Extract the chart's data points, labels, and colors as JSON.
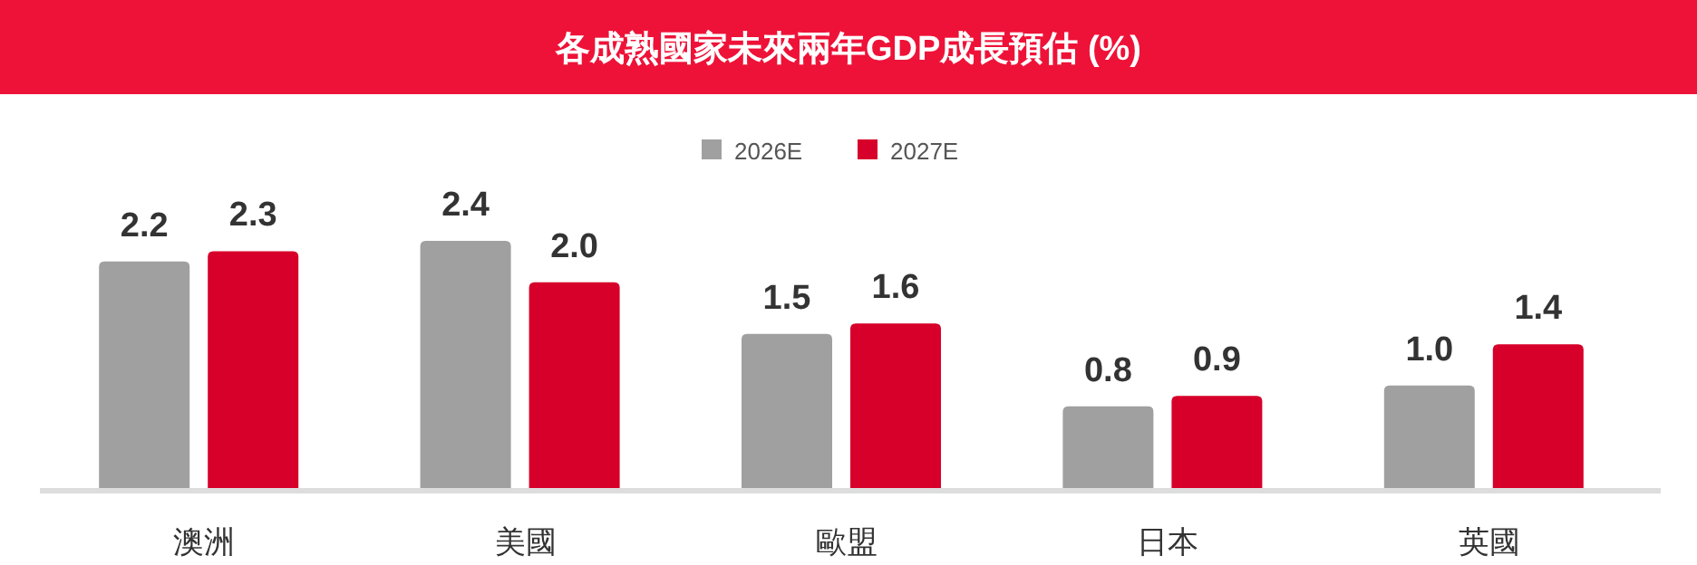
{
  "chart_data": {
    "type": "bar",
    "title": "各成熟國家未來兩年GDP成長預估 (%)",
    "categories": [
      "澳洲",
      "美國",
      "歐盟",
      "日本",
      "英國"
    ],
    "series": [
      {
        "name": "2026E",
        "color": "#a0a0a0",
        "values": [
          2.2,
          2.4,
          1.5,
          0.8,
          1.0
        ],
        "value_labels": [
          "2.2",
          "2.4",
          "1.5",
          "0.8",
          "1.0"
        ]
      },
      {
        "name": "2027E",
        "color": "#d7002a",
        "values": [
          2.3,
          2.0,
          1.6,
          0.9,
          1.4
        ],
        "value_labels": [
          "2.3",
          "2.0",
          "1.6",
          "0.9",
          "1.4"
        ]
      }
    ],
    "legend": "top"
  }
}
